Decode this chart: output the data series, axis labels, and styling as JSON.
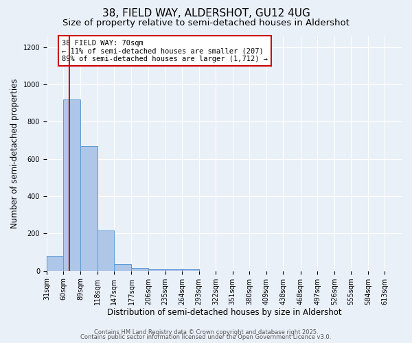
{
  "title1": "38, FIELD WAY, ALDERSHOT, GU12 4UG",
  "title2": "Size of property relative to semi-detached houses in Aldershot",
  "xlabel": "Distribution of semi-detached houses by size in Aldershot",
  "ylabel": "Number of semi-detached properties",
  "bin_labels": [
    "31sqm",
    "60sqm",
    "89sqm",
    "118sqm",
    "147sqm",
    "177sqm",
    "206sqm",
    "235sqm",
    "264sqm",
    "293sqm",
    "322sqm",
    "351sqm",
    "380sqm",
    "409sqm",
    "438sqm",
    "468sqm",
    "497sqm",
    "526sqm",
    "555sqm",
    "584sqm",
    "613sqm"
  ],
  "bin_edges": [
    31,
    60,
    89,
    118,
    147,
    177,
    206,
    235,
    264,
    293,
    322,
    351,
    380,
    409,
    438,
    468,
    497,
    526,
    555,
    584,
    613
  ],
  "bar_heights": [
    80,
    920,
    670,
    215,
    35,
    15,
    10,
    10,
    10,
    0,
    0,
    0,
    0,
    0,
    0,
    0,
    0,
    0,
    0,
    0
  ],
  "bar_color": "#aec6e8",
  "bar_edgecolor": "#5b9bd5",
  "property_size": 70,
  "annotation_text": "38 FIELD WAY: 70sqm\n← 11% of semi-detached houses are smaller (207)\n89% of semi-detached houses are larger (1,712) →",
  "vline_color": "#cc0000",
  "annotation_boxcolor": "white",
  "annotation_edgecolor": "#cc0000",
  "ylim": [
    0,
    1260
  ],
  "yticks": [
    0,
    200,
    400,
    600,
    800,
    1000,
    1200
  ],
  "background_color": "#eaf0f8",
  "footer1": "Contains HM Land Registry data © Crown copyright and database right 2025.",
  "footer2": "Contains public sector information licensed under the Open Government Licence v3.0.",
  "title_fontsize": 11,
  "subtitle_fontsize": 9.5,
  "ylabel_fontsize": 8.5,
  "xlabel_fontsize": 8.5,
  "tick_fontsize": 7,
  "footer_fontsize": 6,
  "annot_fontsize": 7.5
}
